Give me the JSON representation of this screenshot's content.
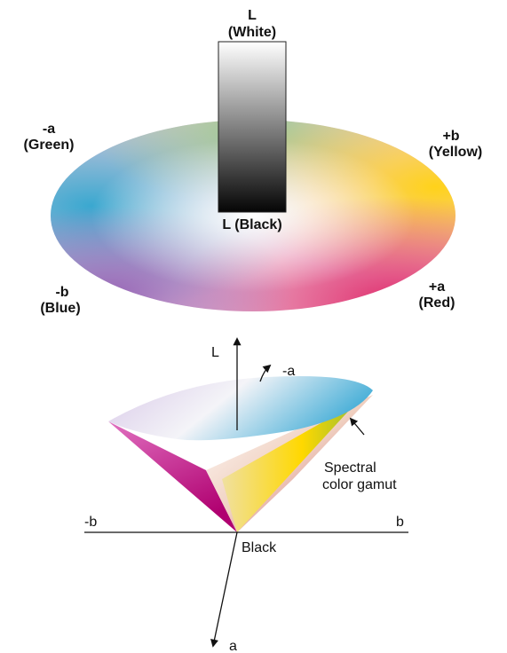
{
  "top_diagram": {
    "labels": [
      "L",
      "(White)",
      "-a",
      "(Green)",
      "+b",
      "(Yellow)",
      "L (Black)",
      "-b",
      "(Blue)",
      "+a",
      "(Red)"
    ]
  },
  "bottom_diagram": {
    "labels": [
      "L",
      "-a",
      "Spectral",
      "color gamut",
      "-b",
      "b",
      "Black",
      "a"
    ]
  }
}
